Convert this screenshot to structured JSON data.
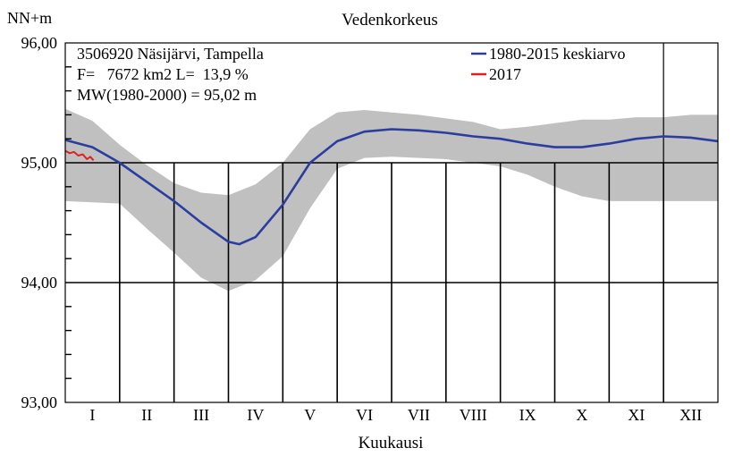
{
  "chart_data": {
    "type": "area",
    "title": "Vedenkorkeus",
    "ylabel": "NN+m",
    "xlabel": "Kuukausi",
    "ylim": [
      93.0,
      96.0
    ],
    "y_ticks": [
      "93,00",
      "94,00",
      "95,00",
      "96,00"
    ],
    "y_tick_values": [
      93.0,
      94.0,
      95.0,
      96.0
    ],
    "reference_line": 95.0,
    "categories": [
      "I",
      "II",
      "III",
      "IV",
      "V",
      "VI",
      "VII",
      "VIII",
      "IX",
      "X",
      "XI",
      "XII"
    ],
    "info_lines": [
      "3506920 Näsijärvi, Tampella",
      "F=   7672 km2 L=  13,9 %",
      "MW(1980-2000) = 95,02 m"
    ],
    "legend_position": "top-right",
    "grid": true,
    "band": {
      "color": "#c0c0c0",
      "x": [
        0,
        0.5,
        1,
        1.5,
        2,
        2.5,
        3,
        3.5,
        4,
        4.5,
        5,
        5.5,
        6,
        6.5,
        7,
        7.5,
        8,
        8.5,
        9,
        9.5,
        10,
        10.5,
        11,
        11.5,
        12
      ],
      "upper": [
        95.45,
        95.35,
        95.15,
        94.98,
        94.83,
        94.75,
        94.73,
        94.82,
        95.0,
        95.28,
        95.42,
        95.44,
        95.42,
        95.4,
        95.37,
        95.34,
        95.28,
        95.3,
        95.33,
        95.36,
        95.36,
        95.38,
        95.38,
        95.4,
        95.4
      ],
      "lower": [
        94.68,
        94.67,
        94.66,
        94.45,
        94.25,
        94.04,
        93.93,
        94.02,
        94.22,
        94.62,
        94.95,
        95.04,
        95.05,
        95.04,
        95.03,
        95.0,
        94.97,
        94.9,
        94.8,
        94.72,
        94.68,
        94.68,
        94.68,
        94.68,
        94.68
      ]
    },
    "series": [
      {
        "name": "1980-2015 keskiarvo",
        "color": "#2b3d9e",
        "x": [
          0,
          0.5,
          1,
          1.5,
          2,
          2.5,
          3,
          3.2,
          3.5,
          4,
          4.5,
          5,
          5.5,
          6,
          6.5,
          7,
          7.5,
          8,
          8.5,
          9,
          9.5,
          10,
          10.5,
          11,
          11.5,
          12
        ],
        "values": [
          95.19,
          95.13,
          95.0,
          94.84,
          94.68,
          94.5,
          94.34,
          94.32,
          94.38,
          94.65,
          95.0,
          95.18,
          95.26,
          95.28,
          95.27,
          95.25,
          95.22,
          95.2,
          95.16,
          95.13,
          95.13,
          95.16,
          95.2,
          95.22,
          95.21,
          95.18
        ]
      },
      {
        "name": "2017",
        "color": "#e02020",
        "x": [
          0,
          0.08,
          0.16,
          0.24,
          0.32,
          0.4,
          0.46,
          0.52
        ],
        "values": [
          95.1,
          95.08,
          95.09,
          95.06,
          95.07,
          95.03,
          95.05,
          95.02
        ]
      }
    ]
  }
}
